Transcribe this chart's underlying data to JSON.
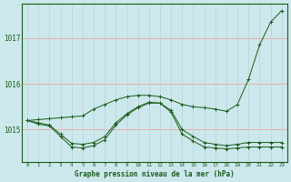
{
  "title": "Graphe pression niveau de la mer (hPa)",
  "background_color": "#cce8ec",
  "grid_color_h": "#f5a0a0",
  "grid_color_v": "#b8d8dc",
  "line_color": "#1a5c1a",
  "x_labels": [
    "0",
    "1",
    "2",
    "3",
    "4",
    "5",
    "6",
    "7",
    "8",
    "9",
    "10",
    "11",
    "12",
    "13",
    "14",
    "15",
    "16",
    "17",
    "18",
    "19",
    "20",
    "21",
    "22",
    "23"
  ],
  "y_ticks": [
    1015,
    1016,
    1017
  ],
  "ylim": [
    1014.3,
    1017.75
  ],
  "xlim": [
    -0.5,
    23.5
  ],
  "series1": [
    1015.2,
    1015.22,
    1015.24,
    1015.26,
    1015.28,
    1015.3,
    1015.45,
    1015.55,
    1015.65,
    1015.72,
    1015.75,
    1015.75,
    1015.72,
    1015.65,
    1015.55,
    1015.5,
    1015.48,
    1015.45,
    1015.4,
    1015.55,
    1016.1,
    1016.85,
    1017.35,
    1017.6
  ],
  "series2": [
    1015.2,
    1015.15,
    1015.1,
    1014.9,
    1014.7,
    1014.68,
    1014.72,
    1014.85,
    1015.15,
    1015.35,
    1015.5,
    1015.6,
    1015.58,
    1015.42,
    1015.0,
    1014.85,
    1014.72,
    1014.68,
    1014.65,
    1014.68,
    1014.72,
    1014.72,
    1014.72,
    1014.72
  ],
  "series3": [
    1015.2,
    1015.12,
    1015.08,
    1014.85,
    1014.62,
    1014.6,
    1014.65,
    1014.78,
    1015.1,
    1015.32,
    1015.48,
    1015.58,
    1015.58,
    1015.38,
    1014.9,
    1014.75,
    1014.62,
    1014.6,
    1014.58,
    1014.6,
    1014.62,
    1014.62,
    1014.62,
    1014.62
  ]
}
